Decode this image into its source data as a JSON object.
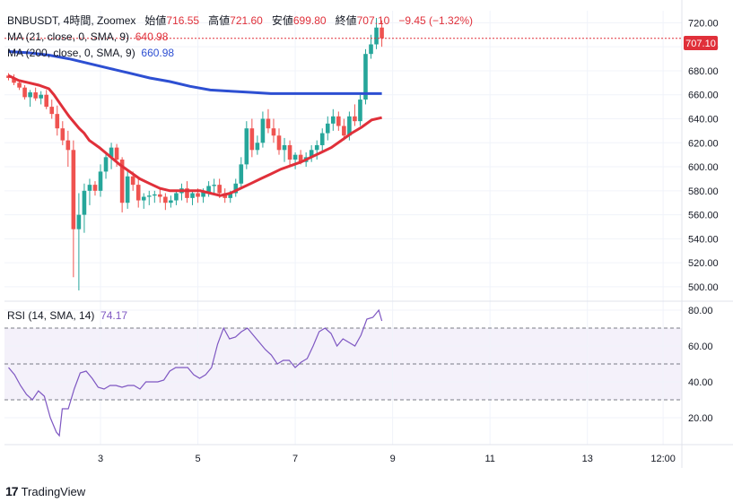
{
  "header": {
    "symbol_line": "BNBUSDT, 4時間, Zoomex",
    "open_label": "始値",
    "open_value": "716.55",
    "high_label": "高値",
    "high_value": "721.60",
    "low_label": "安値",
    "low_value": "699.80",
    "close_label": "終値",
    "close_value": "707.10",
    "change": "−9.45 (−1.32%)"
  },
  "indicators": {
    "ma21_label": "MA (21, close, 0, SMA, 9)",
    "ma21_value": "640.98",
    "ma200_label": "MA (200, close, 0, SMA, 9)",
    "ma200_value": "660.98",
    "rsi_label": "RSI (14, SMA, 14)",
    "rsi_value": "74.17"
  },
  "price_tag": "707.10",
  "branding": "TradingView",
  "colors": {
    "up": "#26a69a",
    "down": "#ef5350",
    "ma21": "#e0303a",
    "ma200": "#2d4fd2",
    "rsi": "#7e57c2"
  },
  "chart_data": {
    "type": "candlestick",
    "price_axis": {
      "range": [
        488,
        730
      ],
      "ticks": [
        500,
        520,
        540,
        560,
        580,
        600,
        620,
        640,
        660,
        680,
        700,
        720
      ]
    },
    "rsi_axis": {
      "range": [
        5,
        85
      ],
      "ticks": [
        20,
        40,
        60,
        80
      ],
      "bands": [
        30,
        50,
        70
      ]
    },
    "x_ticks": [
      {
        "label": "3",
        "i": 17
      },
      {
        "label": "5",
        "i": 35
      },
      {
        "label": "7",
        "i": 53
      },
      {
        "label": "9",
        "i": 71
      },
      {
        "label": "11",
        "i": 89
      },
      {
        "label": "13",
        "i": 107
      },
      {
        "label": "12:00",
        "i": 121
      }
    ],
    "candles": [
      [
        676,
        678,
        672,
        674
      ],
      [
        674,
        677,
        668,
        670
      ],
      [
        670,
        672,
        664,
        666
      ],
      [
        666,
        668,
        656,
        658
      ],
      [
        658,
        664,
        650,
        662
      ],
      [
        662,
        666,
        655,
        657
      ],
      [
        657,
        663,
        652,
        660
      ],
      [
        660,
        664,
        648,
        650
      ],
      [
        650,
        656,
        640,
        644
      ],
      [
        644,
        651,
        626,
        632
      ],
      [
        632,
        638,
        618,
        622
      ],
      [
        622,
        630,
        600,
        614
      ],
      [
        614,
        622,
        508,
        548
      ],
      [
        548,
        578,
        497,
        560
      ],
      [
        560,
        586,
        545,
        580
      ],
      [
        580,
        590,
        568,
        585
      ],
      [
        585,
        588,
        576,
        580
      ],
      [
        580,
        602,
        575,
        596
      ],
      [
        596,
        612,
        590,
        608
      ],
      [
        608,
        620,
        598,
        616
      ],
      [
        616,
        619,
        600,
        606
      ],
      [
        606,
        608,
        562,
        570
      ],
      [
        570,
        598,
        565,
        592
      ],
      [
        592,
        596,
        580,
        585
      ],
      [
        585,
        590,
        566,
        572
      ],
      [
        572,
        578,
        565,
        575
      ],
      [
        575,
        580,
        568,
        576
      ],
      [
        576,
        580,
        570,
        577
      ],
      [
        577,
        582,
        570,
        575
      ],
      [
        575,
        578,
        564,
        570
      ],
      [
        570,
        576,
        566,
        572
      ],
      [
        572,
        580,
        568,
        578
      ],
      [
        578,
        586,
        572,
        582
      ],
      [
        582,
        588,
        570,
        574
      ],
      [
        574,
        580,
        568,
        578
      ],
      [
        578,
        582,
        570,
        575
      ],
      [
        575,
        582,
        570,
        579
      ],
      [
        579,
        588,
        575,
        584
      ],
      [
        584,
        590,
        578,
        585
      ],
      [
        585,
        590,
        574,
        578
      ],
      [
        578,
        582,
        570,
        574
      ],
      [
        574,
        580,
        570,
        578
      ],
      [
        578,
        590,
        575,
        586
      ],
      [
        586,
        608,
        582,
        602
      ],
      [
        602,
        638,
        598,
        632
      ],
      [
        632,
        640,
        608,
        614
      ],
      [
        614,
        626,
        610,
        620
      ],
      [
        620,
        646,
        616,
        640
      ],
      [
        640,
        648,
        628,
        632
      ],
      [
        632,
        640,
        620,
        626
      ],
      [
        626,
        632,
        610,
        614
      ],
      [
        614,
        624,
        604,
        618
      ],
      [
        618,
        622,
        600,
        606
      ],
      [
        606,
        612,
        598,
        610
      ],
      [
        610,
        614,
        602,
        604
      ],
      [
        604,
        612,
        600,
        608
      ],
      [
        608,
        618,
        604,
        614
      ],
      [
        614,
        622,
        606,
        618
      ],
      [
        618,
        632,
        612,
        628
      ],
      [
        628,
        642,
        622,
        636
      ],
      [
        636,
        648,
        630,
        642
      ],
      [
        642,
        646,
        630,
        634
      ],
      [
        634,
        640,
        622,
        626
      ],
      [
        626,
        646,
        622,
        642
      ],
      [
        642,
        652,
        634,
        638
      ],
      [
        638,
        660,
        634,
        656
      ],
      [
        656,
        698,
        652,
        694
      ],
      [
        694,
        710,
        690,
        702
      ],
      [
        702,
        724,
        698,
        716
      ],
      [
        716,
        722,
        700,
        707
      ]
    ],
    "ma21": [
      [
        0,
        676
      ],
      [
        2,
        672
      ],
      [
        4,
        670
      ],
      [
        6,
        668
      ],
      [
        8,
        665
      ],
      [
        9,
        660
      ],
      [
        10,
        654
      ],
      [
        11,
        648
      ],
      [
        12,
        642
      ],
      [
        13,
        637
      ],
      [
        14,
        632
      ],
      [
        15,
        628
      ],
      [
        16,
        622
      ],
      [
        18,
        616
      ],
      [
        20,
        609
      ],
      [
        22,
        602
      ],
      [
        24,
        596
      ],
      [
        26,
        590
      ],
      [
        28,
        586
      ],
      [
        30,
        582
      ],
      [
        32,
        580
      ],
      [
        34,
        580
      ],
      [
        36,
        580
      ],
      [
        38,
        580
      ],
      [
        40,
        578
      ],
      [
        42,
        576
      ],
      [
        44,
        578
      ],
      [
        46,
        582
      ],
      [
        48,
        586
      ],
      [
        50,
        590
      ],
      [
        52,
        594
      ],
      [
        54,
        598
      ],
      [
        56,
        601
      ],
      [
        58,
        604
      ],
      [
        60,
        608
      ],
      [
        62,
        612
      ],
      [
        64,
        616
      ],
      [
        66,
        622
      ],
      [
        68,
        628
      ],
      [
        70,
        633
      ],
      [
        72,
        639
      ],
      [
        74,
        641
      ]
    ],
    "ma200": [
      [
        0,
        696
      ],
      [
        4,
        695
      ],
      [
        8,
        693
      ],
      [
        12,
        690
      ],
      [
        16,
        686
      ],
      [
        20,
        682
      ],
      [
        24,
        678
      ],
      [
        28,
        674
      ],
      [
        32,
        671
      ],
      [
        36,
        667
      ],
      [
        40,
        664
      ],
      [
        44,
        663
      ],
      [
        48,
        662
      ],
      [
        52,
        661
      ],
      [
        56,
        661
      ],
      [
        60,
        661
      ],
      [
        64,
        661
      ],
      [
        68,
        661
      ],
      [
        72,
        661
      ],
      [
        74,
        661
      ]
    ],
    "rsi": [
      [
        0,
        48
      ],
      [
        2,
        44
      ],
      [
        4,
        38
      ],
      [
        6,
        33
      ],
      [
        8,
        30
      ],
      [
        10,
        35
      ],
      [
        12,
        32
      ],
      [
        14,
        20
      ],
      [
        16,
        12
      ],
      [
        17,
        10
      ],
      [
        18,
        25
      ],
      [
        20,
        25
      ],
      [
        22,
        36
      ],
      [
        24,
        45
      ],
      [
        26,
        46
      ],
      [
        28,
        42
      ],
      [
        30,
        37
      ],
      [
        32,
        36
      ],
      [
        34,
        38
      ],
      [
        36,
        38
      ],
      [
        38,
        37
      ],
      [
        40,
        38
      ],
      [
        42,
        38
      ],
      [
        44,
        36
      ],
      [
        46,
        40
      ],
      [
        48,
        40
      ],
      [
        50,
        40
      ],
      [
        52,
        41
      ],
      [
        54,
        46
      ],
      [
        56,
        48
      ],
      [
        58,
        48
      ],
      [
        60,
        48
      ],
      [
        62,
        44
      ],
      [
        64,
        42
      ],
      [
        66,
        44
      ],
      [
        68,
        48
      ],
      [
        70,
        61
      ],
      [
        72,
        70
      ],
      [
        74,
        64
      ],
      [
        76,
        65
      ],
      [
        78,
        68
      ],
      [
        80,
        70
      ],
      [
        82,
        66
      ],
      [
        84,
        62
      ],
      [
        86,
        58
      ],
      [
        88,
        55
      ],
      [
        90,
        50
      ],
      [
        92,
        52
      ],
      [
        94,
        52
      ],
      [
        96,
        48
      ],
      [
        98,
        51
      ],
      [
        100,
        53
      ],
      [
        102,
        60
      ],
      [
        104,
        68
      ],
      [
        106,
        70
      ],
      [
        108,
        67
      ],
      [
        110,
        60
      ],
      [
        112,
        64
      ],
      [
        114,
        62
      ],
      [
        116,
        60
      ],
      [
        118,
        66
      ],
      [
        120,
        75
      ],
      [
        122,
        76
      ],
      [
        124,
        80
      ],
      [
        125,
        74
      ]
    ]
  }
}
